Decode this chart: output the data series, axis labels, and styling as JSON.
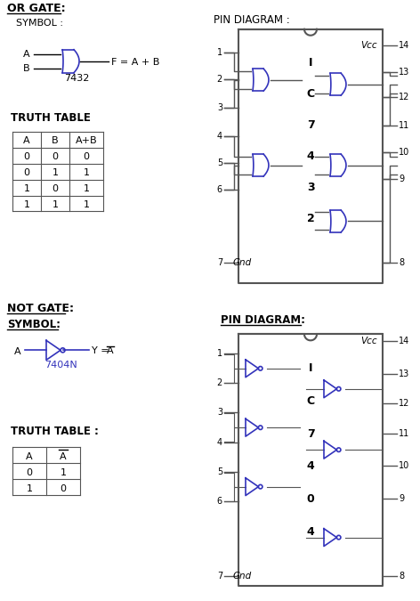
{
  "bg_color": "#ffffff",
  "text_color": "#000000",
  "gate_color": "#3333bb",
  "line_color": "#555555",
  "or_gate_title": "OR GATE:",
  "or_symbol_label": "SYMBOL :",
  "or_pin_label": "PIN DIAGRAM :",
  "or_truth_label": "TRUTH TABLE",
  "or_ic_label": [
    "I",
    "C",
    "7",
    "4",
    "3",
    "2"
  ],
  "not_gate_title": "NOT GATE:",
  "not_symbol_label": "SYMBOL:",
  "not_pin_label": "PIN DIAGRAM:",
  "not_truth_label": "TRUTH TABLE :",
  "not_ic_label": [
    "I",
    "C",
    "7",
    "4",
    "0",
    "4"
  ],
  "or_truth_headers": [
    "A",
    "B",
    "A+B"
  ],
  "or_truth_rows": [
    [
      0,
      0,
      0
    ],
    [
      0,
      1,
      1
    ],
    [
      1,
      0,
      1
    ],
    [
      1,
      1,
      1
    ]
  ],
  "not_truth_rows": [
    [
      0,
      1
    ],
    [
      1,
      0
    ]
  ],
  "vcc_label": "Vcc",
  "gnd_label": "Gnd",
  "ic7432_label": "7432",
  "ic7404_label": "7404N",
  "or_formula": "F = A + B",
  "not_formula": "Y = "
}
